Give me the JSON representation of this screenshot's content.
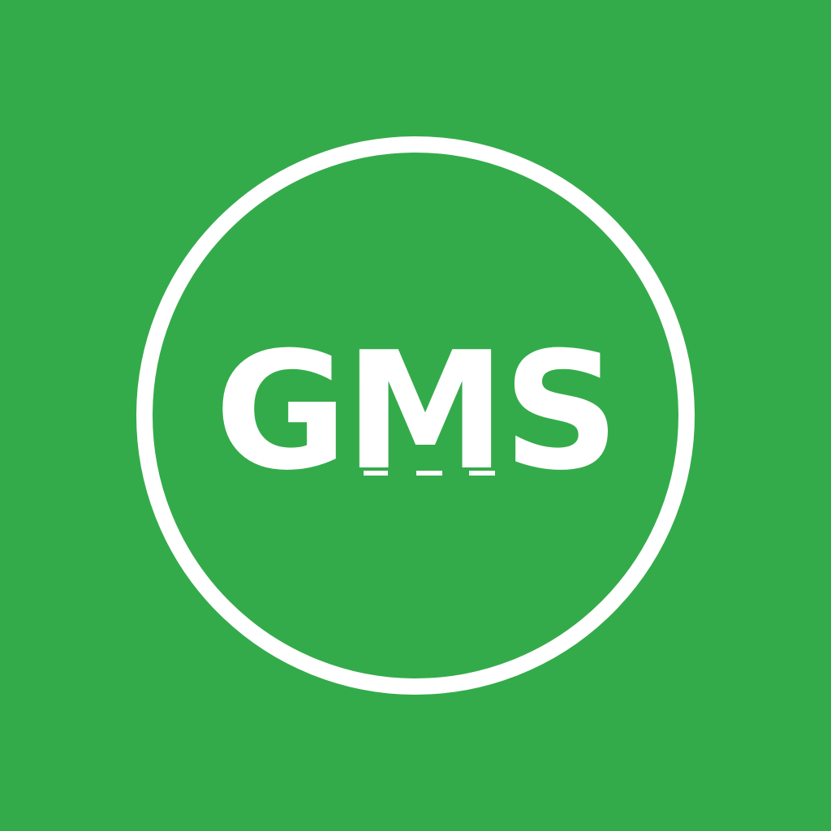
{
  "logo": {
    "text": "GMS",
    "background_color": "#34ab4a",
    "foreground_color": "#ffffff"
  }
}
